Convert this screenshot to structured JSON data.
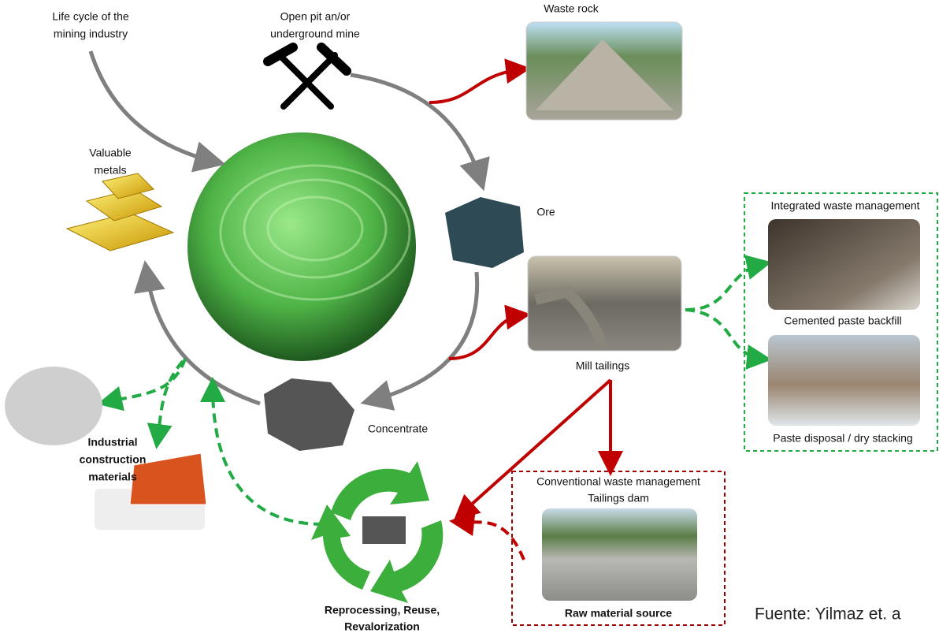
{
  "title": [
    "Life cycle of the",
    "mining industry"
  ],
  "mine": [
    "Open pit an/or",
    "underground mine"
  ],
  "waste_rock": "Waste rock",
  "valuable_metals": [
    "Valuable",
    "metals"
  ],
  "ore": "Ore",
  "mill_tailings": "Mill tailings",
  "concentrate": "Concentrate",
  "industrial": [
    "Industrial",
    "construction",
    "materials"
  ],
  "integrated": {
    "title": "Integrated waste management",
    "backfill": "Cemented paste backfill",
    "stacking": "Paste disposal / dry stacking"
  },
  "conventional": {
    "title": [
      "Conventional waste management",
      "Tailings dam"
    ],
    "source": "Raw material source"
  },
  "reprocessing": [
    "Reprocessing, Reuse,",
    "Revalorization"
  ],
  "credit": "Fuente: Yilmaz et. a"
}
